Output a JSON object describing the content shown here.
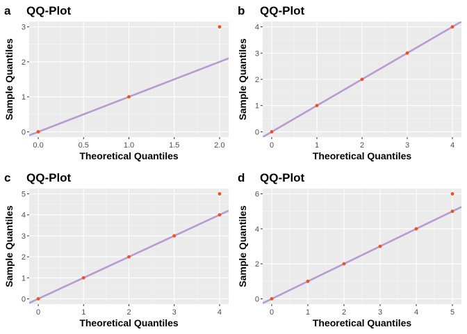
{
  "chart_data": [
    {
      "panel": "a",
      "type": "scatter",
      "title": "QQ-Plot",
      "xlabel": "Theoretical Quantiles",
      "ylabel": "Sample Quantiles",
      "xlim": [
        -0.1,
        2.1
      ],
      "ylim": [
        -0.15,
        3.15
      ],
      "xticks": [
        0,
        0.5,
        1,
        1.5,
        2
      ],
      "xtick_labels": [
        "0.0",
        "0.5",
        "1.0",
        "1.5",
        "2.0"
      ],
      "yticks": [
        0,
        1,
        2,
        3
      ],
      "ytick_labels": [
        "0",
        "1",
        "2",
        "3"
      ],
      "points": [
        {
          "x": 0,
          "y": 0
        },
        {
          "x": 1,
          "y": 1
        },
        {
          "x": 2,
          "y": 3
        }
      ],
      "reference_line": {
        "slope": 1,
        "intercept": 0
      },
      "grid": true
    },
    {
      "panel": "b",
      "type": "scatter",
      "title": "QQ-Plot",
      "xlabel": "Theoretical Quantiles",
      "ylabel": "Sample Quantiles",
      "xlim": [
        -0.2,
        4.2
      ],
      "ylim": [
        -0.2,
        4.2
      ],
      "xticks": [
        0,
        1,
        2,
        3,
        4
      ],
      "xtick_labels": [
        "0",
        "1",
        "2",
        "3",
        "4"
      ],
      "yticks": [
        0,
        1,
        2,
        3,
        4
      ],
      "ytick_labels": [
        "0",
        "1",
        "2",
        "3",
        "4"
      ],
      "points": [
        {
          "x": 0,
          "y": 0
        },
        {
          "x": 1,
          "y": 1
        },
        {
          "x": 2,
          "y": 2
        },
        {
          "x": 3,
          "y": 3
        },
        {
          "x": 4,
          "y": 4
        }
      ],
      "reference_line": {
        "slope": 1,
        "intercept": 0
      },
      "grid": true
    },
    {
      "panel": "c",
      "type": "scatter",
      "title": "QQ-Plot",
      "xlabel": "Theoretical Quantiles",
      "ylabel": "Sample Quantiles",
      "xlim": [
        -0.2,
        4.2
      ],
      "ylim": [
        -0.25,
        5.25
      ],
      "xticks": [
        0,
        1,
        2,
        3,
        4
      ],
      "xtick_labels": [
        "0",
        "1",
        "2",
        "3",
        "4"
      ],
      "yticks": [
        0,
        1,
        2,
        3,
        4,
        5
      ],
      "ytick_labels": [
        "0",
        "1",
        "2",
        "3",
        "4",
        "5"
      ],
      "points": [
        {
          "x": 0,
          "y": 0
        },
        {
          "x": 1,
          "y": 1
        },
        {
          "x": 2,
          "y": 2
        },
        {
          "x": 3,
          "y": 3
        },
        {
          "x": 4,
          "y": 4
        },
        {
          "x": 4,
          "y": 5
        }
      ],
      "reference_line": {
        "slope": 1,
        "intercept": 0
      },
      "grid": true
    },
    {
      "panel": "d",
      "type": "scatter",
      "title": "QQ-Plot",
      "xlabel": "Theoretical Quantiles",
      "ylabel": "Sample Quantiles",
      "xlim": [
        -0.25,
        5.25
      ],
      "ylim": [
        -0.3,
        6.3
      ],
      "xticks": [
        0,
        1,
        2,
        3,
        4,
        5
      ],
      "xtick_labels": [
        "0",
        "1",
        "2",
        "3",
        "4",
        "5"
      ],
      "yticks": [
        0,
        2,
        4,
        6
      ],
      "ytick_labels": [
        "0",
        "2",
        "4",
        "6"
      ],
      "points": [
        {
          "x": 0,
          "y": 0
        },
        {
          "x": 1,
          "y": 1
        },
        {
          "x": 2,
          "y": 2
        },
        {
          "x": 3,
          "y": 3
        },
        {
          "x": 4,
          "y": 4
        },
        {
          "x": 5,
          "y": 5
        },
        {
          "x": 5,
          "y": 6
        }
      ],
      "reference_line": {
        "slope": 1,
        "intercept": 0
      },
      "grid": true
    }
  ],
  "colors": {
    "panel_background": "#ebebeb",
    "grid_major": "#ffffff",
    "grid_minor": "#f5f5f5",
    "point": "#f0501e",
    "reference_line": "#b89ad0",
    "tick_mark": "#333333"
  }
}
